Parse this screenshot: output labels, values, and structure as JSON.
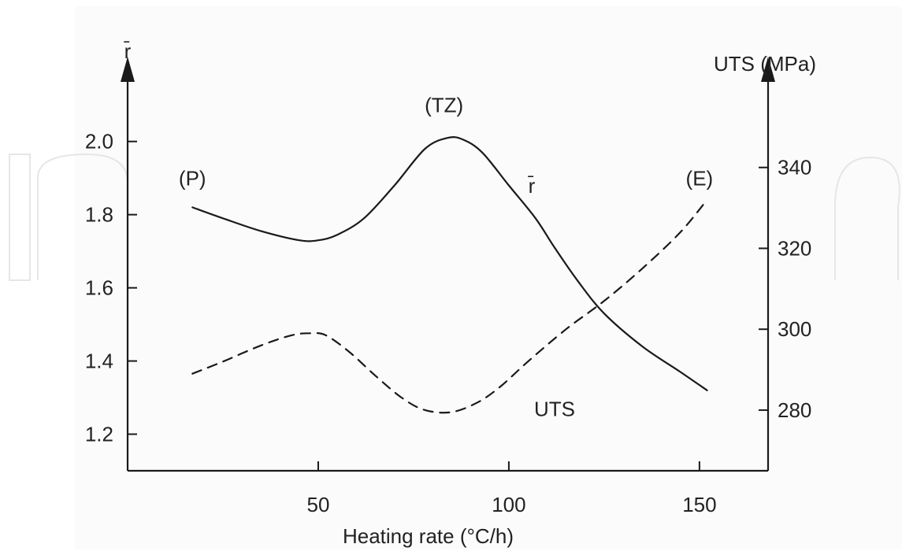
{
  "chart_data": {
    "type": "line",
    "title": "",
    "xlabel": "Heating rate (°C/h)",
    "ylabel_left": "r̄",
    "ylabel_right": "UTS (MPa)",
    "x_ticks": [
      50,
      100,
      150
    ],
    "xlim": [
      0,
      168
    ],
    "ylim_left": [
      1.1,
      2.15
    ],
    "y_ticks_left": [
      1.2,
      1.4,
      1.6,
      1.8,
      2.0
    ],
    "ylim_right": [
      265,
      360
    ],
    "y_ticks_right": [
      280,
      300,
      320,
      340
    ],
    "grid": false,
    "series": [
      {
        "name": "r̄",
        "axis": "left",
        "style": "solid",
        "x": [
          17,
          25,
          35,
          45,
          50,
          55,
          62,
          70,
          78,
          84,
          88,
          93,
          100,
          107,
          112,
          118,
          125,
          135,
          145,
          152
        ],
        "y": [
          1.82,
          1.79,
          1.755,
          1.73,
          1.73,
          1.745,
          1.79,
          1.88,
          1.98,
          2.01,
          2.005,
          1.97,
          1.88,
          1.79,
          1.71,
          1.62,
          1.53,
          1.44,
          1.37,
          1.32
        ]
      },
      {
        "name": "UTS",
        "axis": "right",
        "style": "dashed",
        "x": [
          17,
          25,
          35,
          43,
          48,
          52,
          58,
          65,
          72,
          78,
          85,
          92,
          98,
          105,
          115,
          125,
          135,
          145,
          152
        ],
        "y": [
          289,
          292,
          296,
          298.5,
          299,
          298.5,
          294.5,
          288.5,
          283,
          280,
          279.5,
          282,
          286,
          292,
          300,
          307,
          315,
          324,
          332
        ]
      }
    ],
    "annotations": [
      {
        "text": "(P)",
        "x": 17,
        "y": 1.88,
        "axis": "left"
      },
      {
        "text": "(TZ)",
        "x": 83,
        "y": 2.08,
        "axis": "left"
      },
      {
        "text": "(E)",
        "x": 150,
        "y": 1.88,
        "axis": "left"
      },
      {
        "text": "r̄",
        "x": 106,
        "y": 1.86,
        "axis": "left"
      },
      {
        "text": "UTS",
        "x": 112,
        "y": 1.25,
        "axis": "left"
      }
    ]
  }
}
